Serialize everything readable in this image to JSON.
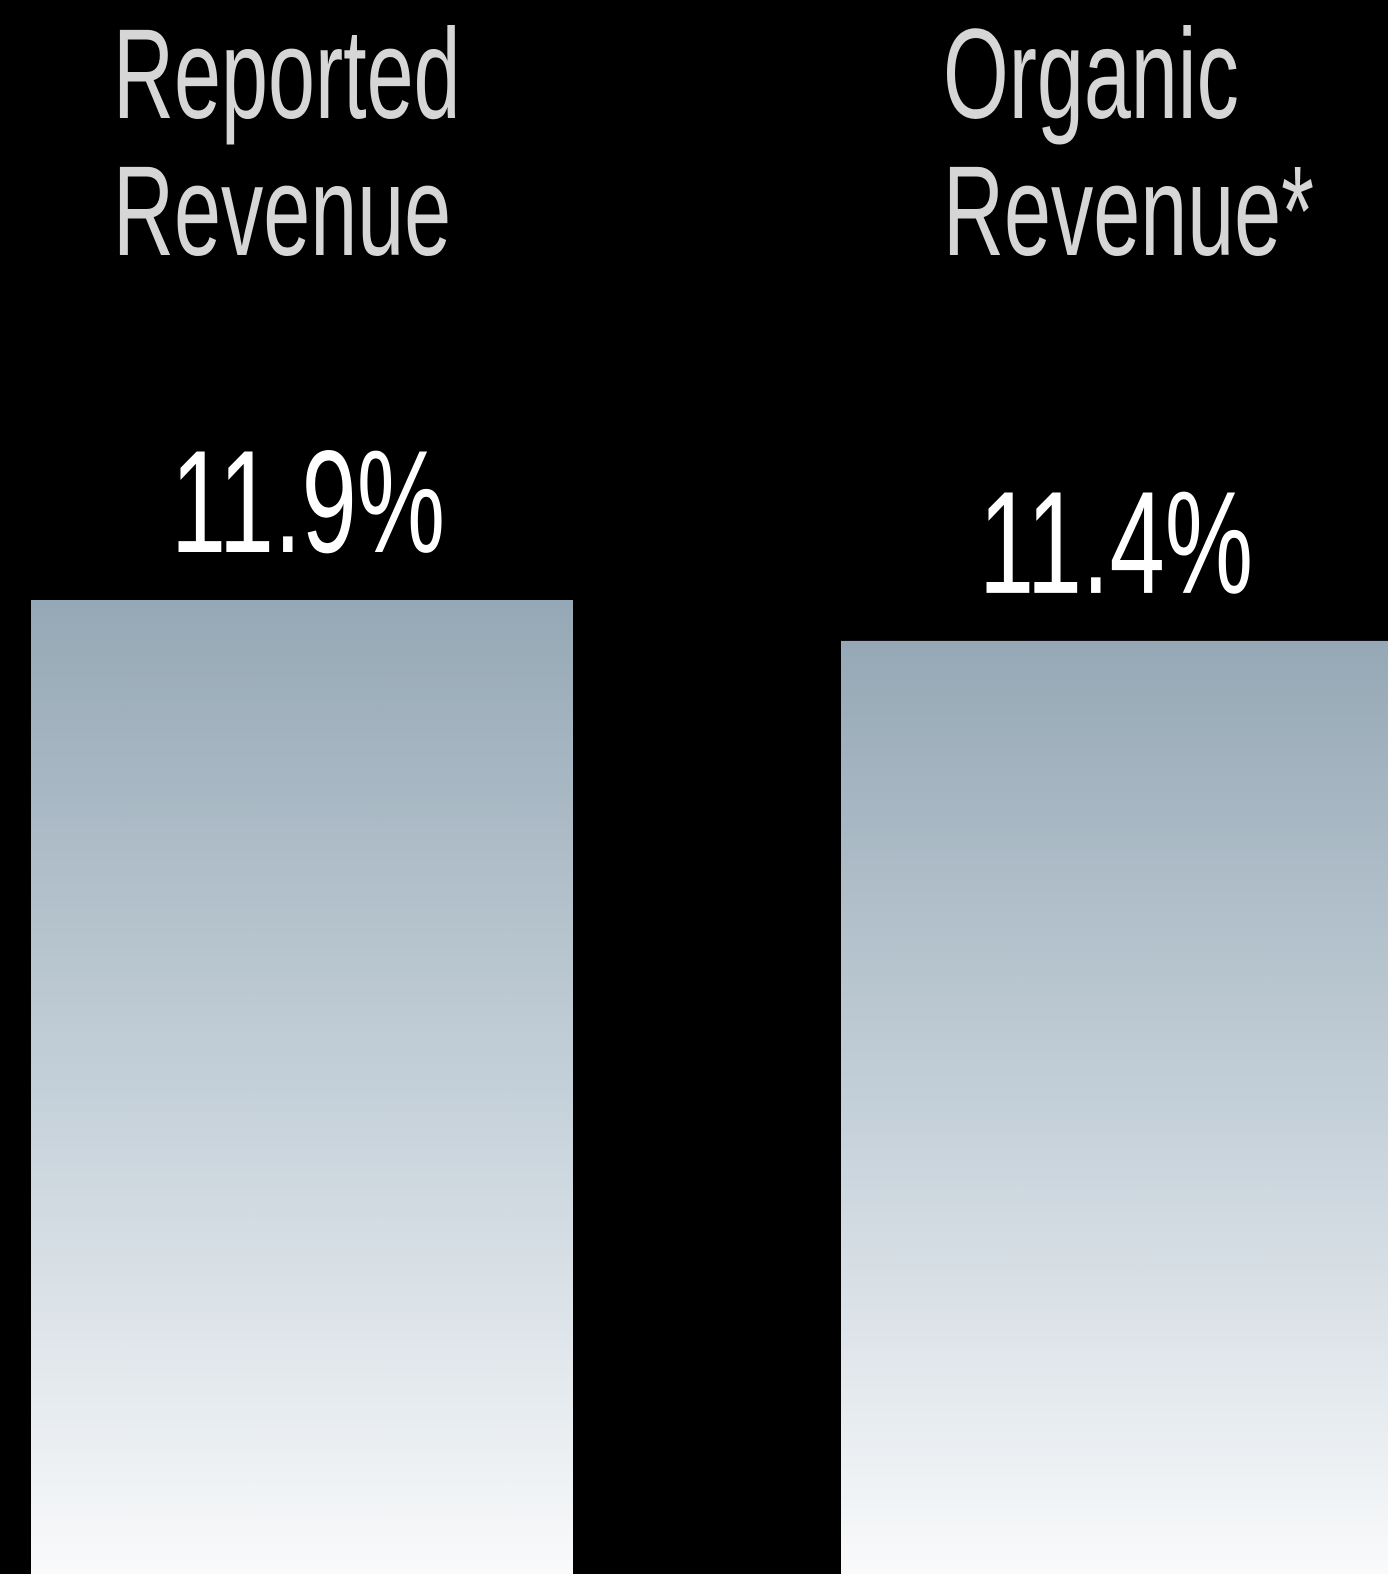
{
  "chart_data": {
    "type": "bar",
    "categories": [
      "Reported Revenue",
      "Organic Revenue*"
    ],
    "values": [
      11.9,
      11.4
    ],
    "value_labels": [
      "11.9%",
      "11.4%"
    ]
  }
}
